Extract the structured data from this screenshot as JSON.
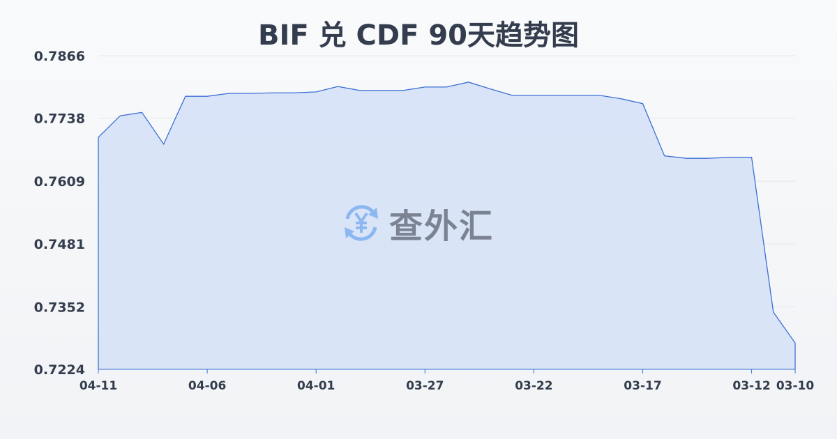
{
  "chart_data": {
    "type": "area",
    "title": "BIF 兑 CDF 90天趋势图",
    "xlabel": "",
    "ylabel": "",
    "x": [
      "04-11",
      "04-10",
      "04-09",
      "04-08",
      "04-07",
      "04-06",
      "04-05",
      "04-04",
      "04-03",
      "04-02",
      "04-01",
      "03-31",
      "03-30",
      "03-29",
      "03-28",
      "03-27",
      "03-26",
      "03-25",
      "03-24",
      "03-23",
      "03-22",
      "03-21",
      "03-20",
      "03-19",
      "03-18",
      "03-17",
      "03-16",
      "03-15",
      "03-14",
      "03-13",
      "03-12",
      "03-11",
      "03-10"
    ],
    "values": [
      0.7699,
      0.7743,
      0.775,
      0.7685,
      0.7783,
      0.7783,
      0.7789,
      0.7789,
      0.779,
      0.779,
      0.7792,
      0.7803,
      0.7795,
      0.7795,
      0.7795,
      0.7802,
      0.7802,
      0.7812,
      0.7798,
      0.7785,
      0.7785,
      0.7785,
      0.7785,
      0.7785,
      0.7778,
      0.7768,
      0.7661,
      0.7656,
      0.7656,
      0.7658,
      0.7658,
      0.7341,
      0.7278
    ],
    "ylim": [
      0.7224,
      0.7866
    ],
    "yticks": [
      "0.7866",
      "0.7738",
      "0.7609",
      "0.7481",
      "0.7352",
      "0.7224"
    ],
    "xticks": [
      "04-11",
      "04-06",
      "04-01",
      "03-27",
      "03-22",
      "03-17",
      "03-12",
      "03-10"
    ],
    "grid": true,
    "colors": {
      "line": "#3b6fd4",
      "fill": "#d5e1f7",
      "grid": "#e3e6ea"
    }
  },
  "watermark": {
    "text": "查外汇",
    "icon": "yen-exchange-icon"
  }
}
